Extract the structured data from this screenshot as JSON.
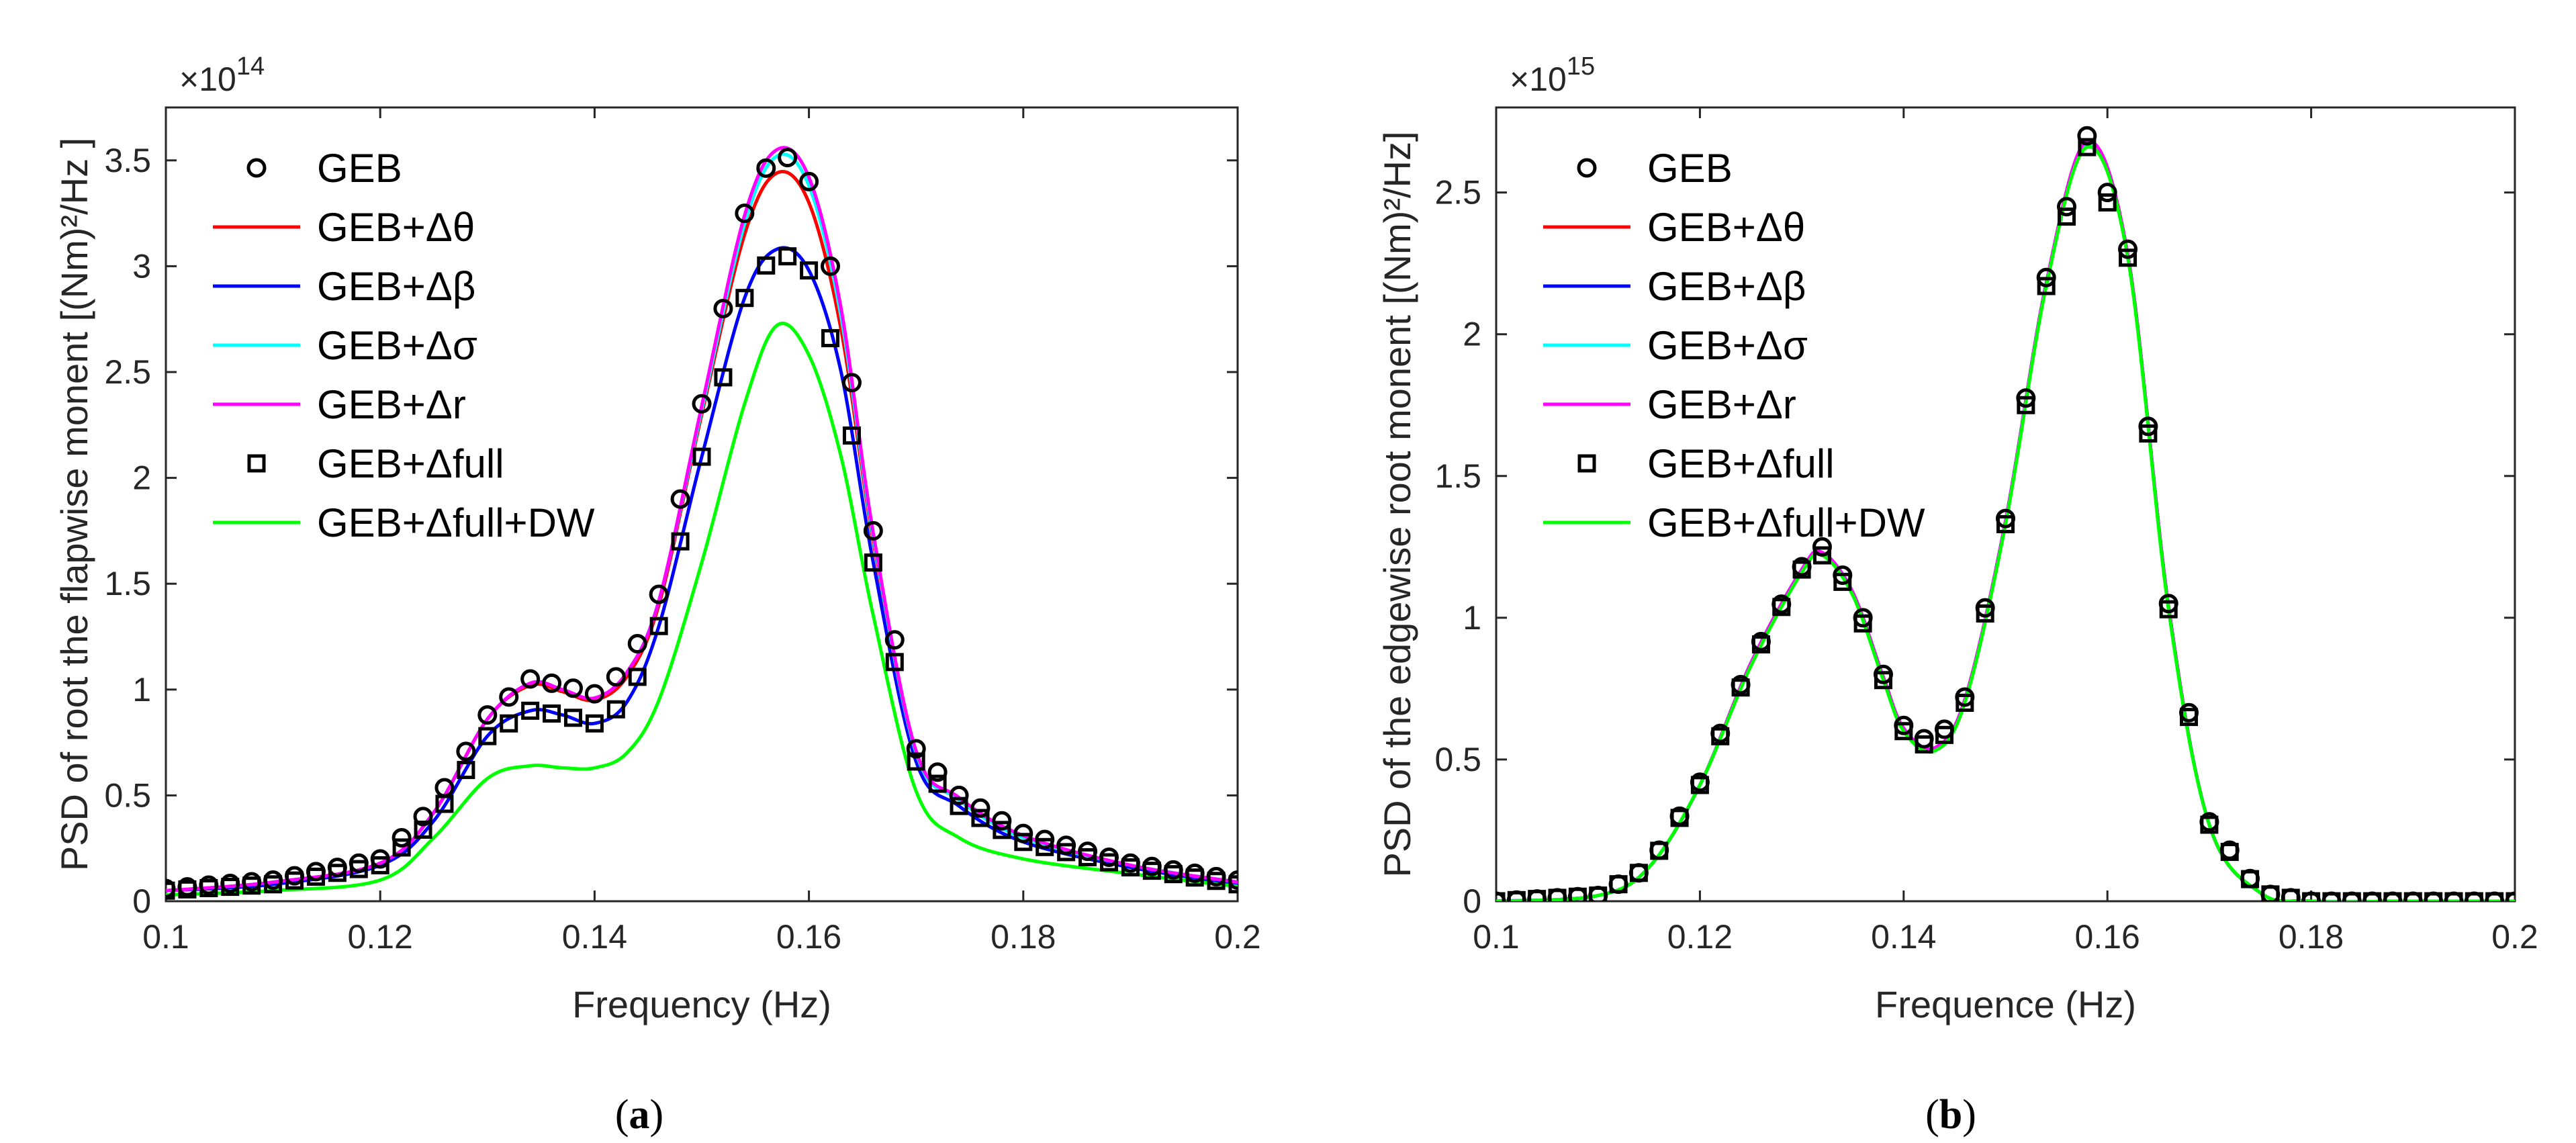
{
  "chart_data": [
    {
      "type": "line",
      "panel_label": "a",
      "ylabel": "PSD of root the flapwise monent [(Nm)²/Hz ]",
      "xlabel": "Frequency (Hz)",
      "y_multiplier": "×10",
      "y_multiplier_exp": "14",
      "xlim": [
        0.1,
        0.2
      ],
      "ylim": [
        0,
        3.75
      ],
      "xticks": [
        0.1,
        0.12,
        0.14,
        0.16,
        0.18,
        0.2
      ],
      "xtick_labels": [
        "0.1",
        "0.12",
        "0.14",
        "0.16",
        "0.18",
        "0.2"
      ],
      "yticks": [
        0,
        0.5,
        1,
        1.5,
        2,
        2.5,
        3,
        3.5
      ],
      "ytick_labels": [
        "0",
        "0.5",
        "1",
        "1.5",
        "2",
        "2.5",
        "3",
        "3.5"
      ],
      "legend_position": "top-left",
      "series": [
        {
          "name": "GEB",
          "style": "circle",
          "color": "#000000",
          "x": [
            0.1,
            0.11,
            0.12,
            0.125,
            0.13,
            0.134,
            0.137,
            0.14,
            0.143,
            0.146,
            0.15,
            0.154,
            0.157,
            0.16,
            0.163,
            0.166,
            0.17,
            0.174,
            0.18,
            0.19,
            0.2
          ],
          "y": [
            0.06,
            0.1,
            0.2,
            0.45,
            0.88,
            1.05,
            1.02,
            0.98,
            1.1,
            1.45,
            2.35,
            3.25,
            3.57,
            3.4,
            2.8,
            1.75,
            0.72,
            0.5,
            0.32,
            0.18,
            0.1
          ]
        },
        {
          "name": "GEB+Δθ",
          "style": "line",
          "color": "#ff0000",
          "x": [
            0.1,
            0.11,
            0.12,
            0.125,
            0.13,
            0.134,
            0.137,
            0.14,
            0.143,
            0.146,
            0.15,
            0.154,
            0.157,
            0.16,
            0.163,
            0.166,
            0.17,
            0.174,
            0.18,
            0.19,
            0.2
          ],
          "y": [
            0.05,
            0.09,
            0.18,
            0.42,
            0.86,
            1.02,
            0.99,
            0.95,
            1.06,
            1.4,
            2.3,
            3.15,
            3.44,
            3.3,
            2.7,
            1.7,
            0.7,
            0.48,
            0.3,
            0.17,
            0.09
          ]
        },
        {
          "name": "GEB+Δβ",
          "style": "line",
          "color": "#0000ff",
          "x": [
            0.1,
            0.11,
            0.12,
            0.125,
            0.13,
            0.134,
            0.137,
            0.14,
            0.143,
            0.146,
            0.15,
            0.154,
            0.157,
            0.16,
            0.163,
            0.166,
            0.17,
            0.174,
            0.18,
            0.19,
            0.2
          ],
          "y": [
            0.05,
            0.08,
            0.17,
            0.38,
            0.78,
            0.9,
            0.88,
            0.84,
            0.94,
            1.3,
            2.1,
            2.85,
            3.08,
            2.98,
            2.5,
            1.6,
            0.66,
            0.45,
            0.28,
            0.16,
            0.08
          ]
        },
        {
          "name": "GEB+Δσ",
          "style": "line",
          "color": "#00ffff",
          "x": [
            0.1,
            0.11,
            0.12,
            0.125,
            0.13,
            0.134,
            0.137,
            0.14,
            0.143,
            0.146,
            0.15,
            0.154,
            0.157,
            0.16,
            0.163,
            0.166,
            0.17,
            0.174,
            0.18,
            0.19,
            0.2
          ],
          "y": [
            0.05,
            0.09,
            0.18,
            0.42,
            0.86,
            1.03,
            1.0,
            0.96,
            1.08,
            1.42,
            2.32,
            3.2,
            3.52,
            3.38,
            2.76,
            1.72,
            0.7,
            0.48,
            0.3,
            0.17,
            0.09
          ]
        },
        {
          "name": "GEB+Δr",
          "style": "line",
          "color": "#ff00ff",
          "x": [
            0.1,
            0.11,
            0.12,
            0.125,
            0.13,
            0.134,
            0.137,
            0.14,
            0.143,
            0.146,
            0.15,
            0.154,
            0.157,
            0.16,
            0.163,
            0.166,
            0.17,
            0.174,
            0.18,
            0.19,
            0.2
          ],
          "y": [
            0.05,
            0.09,
            0.18,
            0.42,
            0.86,
            1.03,
            1.0,
            0.96,
            1.08,
            1.42,
            2.34,
            3.24,
            3.55,
            3.42,
            2.8,
            1.74,
            0.71,
            0.49,
            0.31,
            0.17,
            0.09
          ]
        },
        {
          "name": "GEB+Δfull",
          "style": "square",
          "color": "#000000",
          "x": [
            0.1,
            0.11,
            0.12,
            0.125,
            0.13,
            0.134,
            0.137,
            0.14,
            0.143,
            0.146,
            0.15,
            0.154,
            0.157,
            0.16,
            0.163,
            0.166,
            0.17,
            0.174,
            0.18,
            0.19,
            0.2
          ],
          "y": [
            0.05,
            0.08,
            0.17,
            0.38,
            0.78,
            0.9,
            0.88,
            0.84,
            0.94,
            1.3,
            2.1,
            2.85,
            3.08,
            2.98,
            2.5,
            1.6,
            0.66,
            0.45,
            0.28,
            0.16,
            0.08
          ]
        },
        {
          "name": "GEB+Δfull+DW",
          "style": "line",
          "color": "#00ff00",
          "x": [
            0.1,
            0.11,
            0.12,
            0.125,
            0.13,
            0.134,
            0.137,
            0.14,
            0.143,
            0.146,
            0.15,
            0.154,
            0.157,
            0.16,
            0.163,
            0.166,
            0.17,
            0.174,
            0.18,
            0.19,
            0.2
          ],
          "y": [
            0.03,
            0.05,
            0.1,
            0.3,
            0.58,
            0.64,
            0.63,
            0.63,
            0.7,
            0.95,
            1.6,
            2.35,
            2.72,
            2.58,
            2.1,
            1.35,
            0.52,
            0.3,
            0.2,
            0.13,
            0.07
          ]
        }
      ]
    },
    {
      "type": "line",
      "panel_label": "b",
      "ylabel": "PSD of the edgewise root monent [(Nm)²/Hz]",
      "xlabel": "Frequence (Hz)",
      "y_multiplier": "×10",
      "y_multiplier_exp": "15",
      "xlim": [
        0.1,
        0.2
      ],
      "ylim": [
        0,
        2.8
      ],
      "xticks": [
        0.1,
        0.12,
        0.14,
        0.16,
        0.18,
        0.2
      ],
      "xtick_labels": [
        "0.1",
        "0.12",
        "0.14",
        "0.16",
        "0.18",
        "0.2"
      ],
      "yticks": [
        0,
        0.5,
        1,
        1.5,
        2,
        2.5
      ],
      "ytick_labels": [
        "0",
        "0.5",
        "1",
        "1.5",
        "2",
        "2.5"
      ],
      "legend_position": "top-left",
      "series": [
        {
          "name": "GEB",
          "style": "circle",
          "color": "#000000",
          "x": [
            0.1,
            0.11,
            0.115,
            0.12,
            0.125,
            0.13,
            0.132,
            0.135,
            0.138,
            0.14,
            0.143,
            0.146,
            0.15,
            0.154,
            0.158,
            0.162,
            0.166,
            0.17,
            0.175,
            0.18,
            0.19,
            0.2
          ],
          "y": [
            0.0,
            0.02,
            0.12,
            0.42,
            0.85,
            1.18,
            1.25,
            1.1,
            0.8,
            0.62,
            0.55,
            0.72,
            1.35,
            2.2,
            2.7,
            2.3,
            1.05,
            0.28,
            0.03,
            0.0,
            0.0,
            0.0
          ]
        },
        {
          "name": "GEB+Δθ",
          "style": "line",
          "color": "#ff0000",
          "x": [
            0.1,
            0.11,
            0.115,
            0.12,
            0.125,
            0.13,
            0.132,
            0.135,
            0.138,
            0.14,
            0.143,
            0.146,
            0.15,
            0.154,
            0.158,
            0.162,
            0.166,
            0.17,
            0.175,
            0.18,
            0.19,
            0.2
          ],
          "y": [
            0.0,
            0.02,
            0.12,
            0.41,
            0.84,
            1.17,
            1.23,
            1.09,
            0.79,
            0.61,
            0.54,
            0.71,
            1.34,
            2.18,
            2.67,
            2.28,
            1.04,
            0.27,
            0.03,
            0.0,
            0.0,
            0.0
          ]
        },
        {
          "name": "GEB+Δβ",
          "style": "line",
          "color": "#0000ff",
          "x": [
            0.1,
            0.11,
            0.115,
            0.12,
            0.125,
            0.13,
            0.132,
            0.135,
            0.138,
            0.14,
            0.143,
            0.146,
            0.15,
            0.154,
            0.158,
            0.162,
            0.166,
            0.17,
            0.175,
            0.18,
            0.19,
            0.2
          ],
          "y": [
            0.0,
            0.02,
            0.12,
            0.41,
            0.84,
            1.17,
            1.23,
            1.09,
            0.79,
            0.61,
            0.54,
            0.71,
            1.34,
            2.18,
            2.67,
            2.28,
            1.04,
            0.27,
            0.03,
            0.0,
            0.0,
            0.0
          ]
        },
        {
          "name": "GEB+Δσ",
          "style": "line",
          "color": "#00ffff",
          "x": [
            0.1,
            0.11,
            0.115,
            0.12,
            0.125,
            0.13,
            0.132,
            0.135,
            0.138,
            0.14,
            0.143,
            0.146,
            0.15,
            0.154,
            0.158,
            0.162,
            0.166,
            0.17,
            0.175,
            0.18,
            0.19,
            0.2
          ],
          "y": [
            0.0,
            0.02,
            0.12,
            0.41,
            0.84,
            1.17,
            1.23,
            1.09,
            0.79,
            0.61,
            0.54,
            0.71,
            1.34,
            2.18,
            2.67,
            2.28,
            1.04,
            0.27,
            0.03,
            0.0,
            0.0,
            0.0
          ]
        },
        {
          "name": "GEB+Δr",
          "style": "line",
          "color": "#ff00ff",
          "x": [
            0.1,
            0.11,
            0.115,
            0.12,
            0.125,
            0.13,
            0.132,
            0.135,
            0.138,
            0.14,
            0.143,
            0.146,
            0.15,
            0.154,
            0.158,
            0.162,
            0.166,
            0.17,
            0.175,
            0.18,
            0.19,
            0.2
          ],
          "y": [
            0.0,
            0.02,
            0.12,
            0.41,
            0.84,
            1.17,
            1.23,
            1.09,
            0.79,
            0.61,
            0.54,
            0.71,
            1.34,
            2.18,
            2.68,
            2.28,
            1.04,
            0.27,
            0.03,
            0.0,
            0.0,
            0.0
          ]
        },
        {
          "name": "GEB+Δfull",
          "style": "square",
          "color": "#000000",
          "x": [
            0.1,
            0.11,
            0.115,
            0.12,
            0.125,
            0.13,
            0.132,
            0.135,
            0.138,
            0.14,
            0.143,
            0.146,
            0.15,
            0.154,
            0.158,
            0.162,
            0.166,
            0.17,
            0.175,
            0.18,
            0.19,
            0.2
          ],
          "y": [
            0.0,
            0.02,
            0.12,
            0.41,
            0.84,
            1.17,
            1.22,
            1.08,
            0.78,
            0.6,
            0.53,
            0.7,
            1.33,
            2.17,
            2.66,
            2.27,
            1.03,
            0.27,
            0.03,
            0.0,
            0.0,
            0.0
          ]
        },
        {
          "name": "GEB+Δfull+DW",
          "style": "line",
          "color": "#00ff00",
          "x": [
            0.1,
            0.11,
            0.115,
            0.12,
            0.125,
            0.13,
            0.132,
            0.135,
            0.138,
            0.14,
            0.143,
            0.146,
            0.15,
            0.154,
            0.158,
            0.162,
            0.166,
            0.17,
            0.175,
            0.18,
            0.19,
            0.2
          ],
          "y": [
            0.0,
            0.02,
            0.12,
            0.41,
            0.83,
            1.16,
            1.22,
            1.08,
            0.78,
            0.6,
            0.53,
            0.7,
            1.33,
            2.17,
            2.66,
            2.27,
            1.03,
            0.27,
            0.03,
            0.0,
            0.0,
            0.0
          ]
        }
      ]
    }
  ]
}
